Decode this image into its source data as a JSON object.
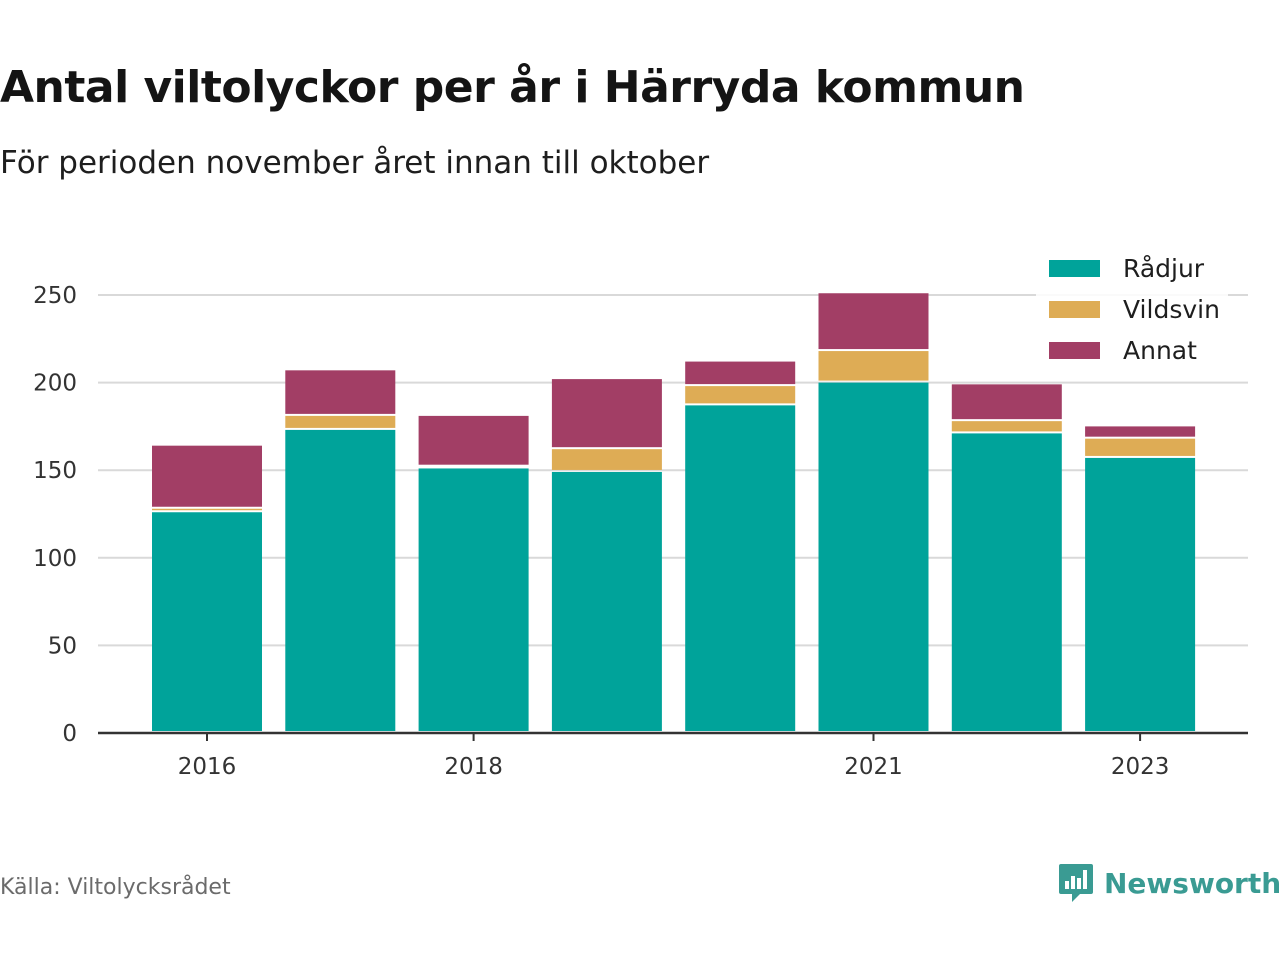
{
  "header": {
    "title": "Antal viltolyckor per år i Härryda kommun",
    "subtitle": "För perioden november året innan till oktober"
  },
  "footer": {
    "source": "Källa: Viltolycksrådet",
    "brand": "Newsworthy",
    "brand_icon": "bar-chart-speech-bubble-icon"
  },
  "colors": {
    "Rådjur": "#00a39a",
    "Vildsvin": "#deac55",
    "Annat": "#a23e65",
    "grid": "#d9d9d9",
    "axis": "#333333",
    "brand": "#3a9b93"
  },
  "chart_data": {
    "type": "bar",
    "stacked": true,
    "title": "Antal viltolyckor per år i Härryda kommun",
    "subtitle": "För perioden november året innan till oktober",
    "categories": [
      "2016",
      "2017",
      "2018",
      "2019",
      "2020",
      "2021",
      "2022",
      "2023"
    ],
    "x_tick_labels": [
      "2016",
      "",
      "2018",
      "",
      "",
      "2021",
      "",
      "2023"
    ],
    "series": [
      {
        "name": "Rådjur",
        "values": [
          126,
          173,
          151,
          149,
          187,
          200,
          171,
          157
        ]
      },
      {
        "name": "Vildsvin",
        "values": [
          2,
          8,
          1,
          13,
          11,
          18,
          7,
          11
        ]
      },
      {
        "name": "Annat",
        "values": [
          36,
          26,
          29,
          40,
          14,
          33,
          21,
          7
        ]
      }
    ],
    "xlabel": "",
    "ylabel": "",
    "ylim": [
      0,
      250
    ],
    "yticks": [
      0,
      50,
      100,
      150,
      200,
      250
    ],
    "grid": true,
    "legend_position": "top-right"
  }
}
